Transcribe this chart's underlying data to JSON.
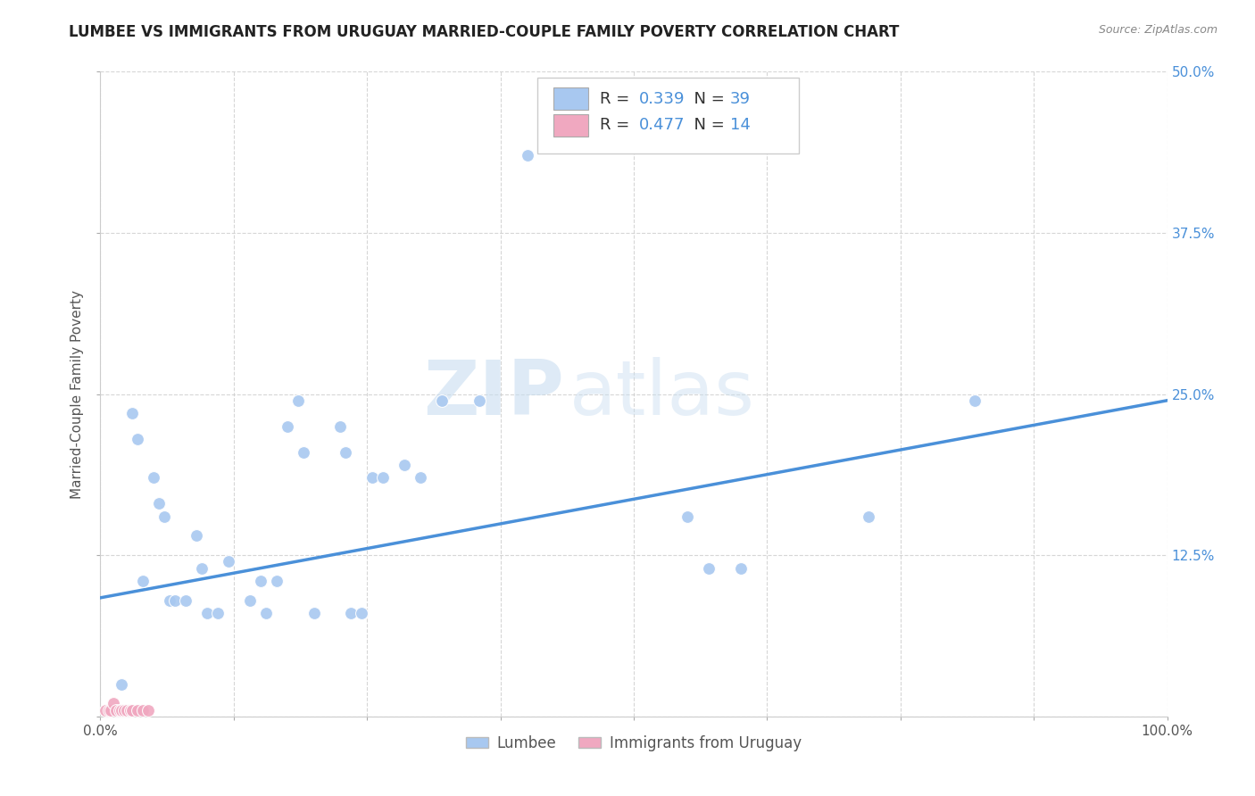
{
  "title": "LUMBEE VS IMMIGRANTS FROM URUGUAY MARRIED-COUPLE FAMILY POVERTY CORRELATION CHART",
  "source": "Source: ZipAtlas.com",
  "ylabel": "Married-Couple Family Poverty",
  "xlim": [
    0,
    1.0
  ],
  "ylim": [
    0,
    0.5
  ],
  "xticks": [
    0.0,
    0.125,
    0.25,
    0.375,
    0.5,
    0.625,
    0.75,
    0.875,
    1.0
  ],
  "xticklabels_left": "0.0%",
  "xticklabels_right": "100.0%",
  "yticks": [
    0.0,
    0.125,
    0.25,
    0.375,
    0.5
  ],
  "yticklabels": [
    "",
    "12.5%",
    "25.0%",
    "37.5%",
    "50.0%"
  ],
  "lumbee_R": 0.339,
  "lumbee_N": 39,
  "uruguay_R": 0.477,
  "uruguay_N": 14,
  "lumbee_color": "#a8c8f0",
  "uruguay_color": "#f0a8c0",
  "lumbee_line_color": "#4a90d9",
  "uruguay_line_color": "#d9708a",
  "lumbee_scatter_x": [
    0.02,
    0.03,
    0.035,
    0.04,
    0.05,
    0.055,
    0.06,
    0.065,
    0.07,
    0.08,
    0.09,
    0.095,
    0.1,
    0.11,
    0.12,
    0.14,
    0.15,
    0.155,
    0.165,
    0.175,
    0.185,
    0.19,
    0.2,
    0.225,
    0.23,
    0.235,
    0.245,
    0.255,
    0.265,
    0.285,
    0.3,
    0.32,
    0.355,
    0.4,
    0.55,
    0.57,
    0.6,
    0.72,
    0.82
  ],
  "lumbee_scatter_y": [
    0.025,
    0.235,
    0.215,
    0.105,
    0.185,
    0.165,
    0.155,
    0.09,
    0.09,
    0.09,
    0.14,
    0.115,
    0.08,
    0.08,
    0.12,
    0.09,
    0.105,
    0.08,
    0.105,
    0.225,
    0.245,
    0.205,
    0.08,
    0.225,
    0.205,
    0.08,
    0.08,
    0.185,
    0.185,
    0.195,
    0.185,
    0.245,
    0.245,
    0.435,
    0.155,
    0.115,
    0.115,
    0.155,
    0.245
  ],
  "uruguay_scatter_x": [
    0.005,
    0.008,
    0.01,
    0.012,
    0.015,
    0.018,
    0.02,
    0.022,
    0.025,
    0.028,
    0.03,
    0.035,
    0.04,
    0.045
  ],
  "uruguay_scatter_y": [
    0.005,
    0.005,
    0.005,
    0.01,
    0.005,
    0.005,
    0.005,
    0.005,
    0.005,
    0.005,
    0.005,
    0.005,
    0.005,
    0.005
  ],
  "lumbee_trend_x0": 0.0,
  "lumbee_trend_y0": 0.092,
  "lumbee_trend_x1": 1.0,
  "lumbee_trend_y1": 0.245,
  "watermark_zip": "ZIP",
  "watermark_atlas": "atlas",
  "legend_lumbee": "Lumbee",
  "legend_uruguay": "Immigrants from Uruguay",
  "background_color": "#ffffff",
  "title_fontsize": 12,
  "axis_label_fontsize": 11,
  "tick_fontsize": 11,
  "scatter_size": 100
}
